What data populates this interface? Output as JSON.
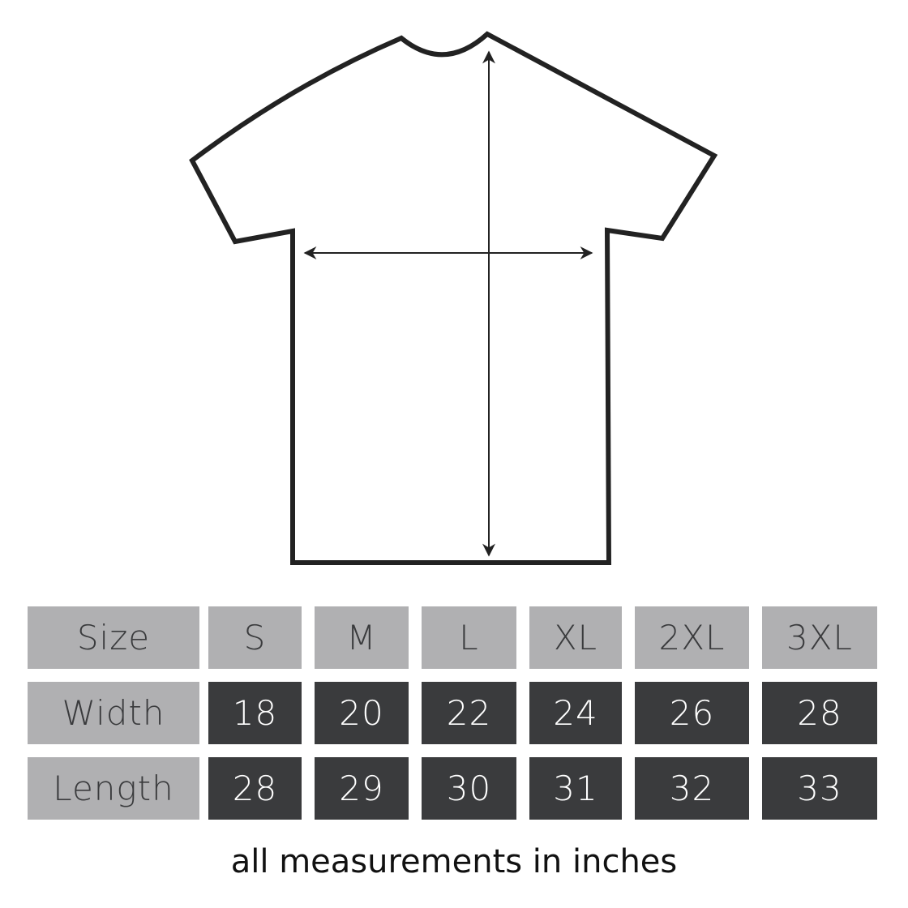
{
  "table": {
    "header_label": "Size",
    "sizes": [
      "S",
      "M",
      "L",
      "XL",
      "2XL",
      "3XL"
    ],
    "rows": [
      {
        "label": "Width",
        "values": [
          "18",
          "20",
          "22",
          "24",
          "26",
          "28"
        ]
      },
      {
        "label": "Length",
        "values": [
          "28",
          "29",
          "30",
          "31",
          "32",
          "33"
        ]
      }
    ]
  },
  "note": "all measurements in inches",
  "colors": {
    "header_bg": "#b0b0b2",
    "value_bg": "#3a3b3d",
    "outline": "#222222"
  }
}
